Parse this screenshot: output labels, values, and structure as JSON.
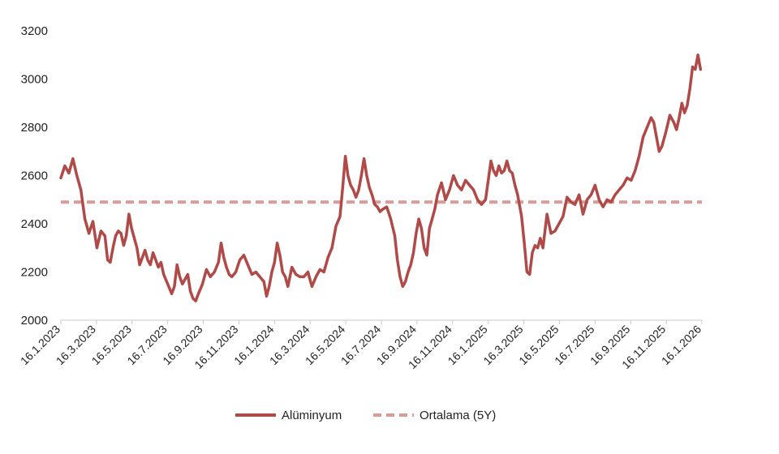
{
  "chart_data": {
    "type": "line",
    "title": "",
    "xlabel": "",
    "ylabel": "",
    "ylim": [
      2000,
      3200
    ],
    "yticks": [
      "2000",
      "2200",
      "2400",
      "2600",
      "2800",
      "3000",
      "3200"
    ],
    "xticks": [
      "16.1.2023",
      "16.3.2023",
      "16.5.2023",
      "16.7.2023",
      "16.9.2023",
      "16.11.2023",
      "16.1.2024",
      "16.3.2024",
      "16.5.2024",
      "16.7.2024",
      "16.9.2024",
      "16.11.2024",
      "16.1.2025",
      "16.3.2025",
      "16.5.2025",
      "16.7.2025",
      "16.9.2025",
      "16.11.2025",
      "16.1.2026"
    ],
    "legend_position": "bottom-center",
    "series": [
      {
        "name": "Alüminyum",
        "style": "solid",
        "color": "#b04a48",
        "points": [
          [
            0,
            2590
          ],
          [
            0.3,
            2640
          ],
          [
            0.6,
            2610
          ],
          [
            0.9,
            2670
          ],
          [
            1.2,
            2600
          ],
          [
            1.5,
            2540
          ],
          [
            1.8,
            2420
          ],
          [
            2.1,
            2360
          ],
          [
            2.4,
            2410
          ],
          [
            2.7,
            2300
          ],
          [
            3.0,
            2370
          ],
          [
            3.3,
            2350
          ],
          [
            3.5,
            2250
          ],
          [
            3.7,
            2240
          ],
          [
            3.9,
            2300
          ],
          [
            4.1,
            2350
          ],
          [
            4.3,
            2370
          ],
          [
            4.5,
            2360
          ],
          [
            4.7,
            2310
          ],
          [
            4.9,
            2350
          ],
          [
            5.1,
            2440
          ],
          [
            5.3,
            2380
          ],
          [
            5.5,
            2340
          ],
          [
            5.7,
            2300
          ],
          [
            5.9,
            2230
          ],
          [
            6.1,
            2260
          ],
          [
            6.3,
            2290
          ],
          [
            6.5,
            2250
          ],
          [
            6.7,
            2230
          ],
          [
            6.9,
            2280
          ],
          [
            7.1,
            2250
          ],
          [
            7.3,
            2220
          ],
          [
            7.5,
            2240
          ],
          [
            7.7,
            2190
          ],
          [
            8.0,
            2150
          ],
          [
            8.3,
            2110
          ],
          [
            8.5,
            2140
          ],
          [
            8.7,
            2230
          ],
          [
            8.9,
            2180
          ],
          [
            9.1,
            2150
          ],
          [
            9.3,
            2170
          ],
          [
            9.5,
            2190
          ],
          [
            9.7,
            2120
          ],
          [
            9.9,
            2090
          ],
          [
            10.1,
            2080
          ],
          [
            10.3,
            2110
          ],
          [
            10.6,
            2150
          ],
          [
            10.9,
            2210
          ],
          [
            11.2,
            2180
          ],
          [
            11.5,
            2200
          ],
          [
            11.8,
            2240
          ],
          [
            12.0,
            2320
          ],
          [
            12.2,
            2260
          ],
          [
            12.4,
            2220
          ],
          [
            12.6,
            2190
          ],
          [
            12.8,
            2180
          ],
          [
            13.1,
            2200
          ],
          [
            13.4,
            2250
          ],
          [
            13.7,
            2270
          ],
          [
            14.0,
            2230
          ],
          [
            14.3,
            2190
          ],
          [
            14.6,
            2200
          ],
          [
            14.9,
            2180
          ],
          [
            15.2,
            2160
          ],
          [
            15.4,
            2100
          ],
          [
            15.6,
            2140
          ],
          [
            15.8,
            2200
          ],
          [
            16.0,
            2240
          ],
          [
            16.2,
            2320
          ],
          [
            16.4,
            2270
          ],
          [
            16.6,
            2200
          ],
          [
            16.8,
            2180
          ],
          [
            17.0,
            2140
          ],
          [
            17.3,
            2220
          ],
          [
            17.6,
            2190
          ],
          [
            17.9,
            2180
          ],
          [
            18.2,
            2180
          ],
          [
            18.5,
            2200
          ],
          [
            18.8,
            2140
          ],
          [
            19.1,
            2180
          ],
          [
            19.4,
            2210
          ],
          [
            19.7,
            2200
          ],
          [
            20.0,
            2260
          ],
          [
            20.3,
            2300
          ],
          [
            20.6,
            2390
          ],
          [
            20.9,
            2430
          ],
          [
            21.1,
            2550
          ],
          [
            21.3,
            2680
          ],
          [
            21.5,
            2600
          ],
          [
            21.7,
            2560
          ],
          [
            21.9,
            2540
          ],
          [
            22.1,
            2510
          ],
          [
            22.3,
            2540
          ],
          [
            22.5,
            2600
          ],
          [
            22.7,
            2670
          ],
          [
            22.9,
            2600
          ],
          [
            23.1,
            2550
          ],
          [
            23.3,
            2520
          ],
          [
            23.5,
            2480
          ],
          [
            23.7,
            2470
          ],
          [
            23.9,
            2450
          ],
          [
            24.1,
            2460
          ],
          [
            24.4,
            2470
          ],
          [
            24.7,
            2420
          ],
          [
            25.0,
            2350
          ],
          [
            25.2,
            2250
          ],
          [
            25.4,
            2180
          ],
          [
            25.6,
            2140
          ],
          [
            25.8,
            2160
          ],
          [
            26.0,
            2200
          ],
          [
            26.2,
            2230
          ],
          [
            26.4,
            2280
          ],
          [
            26.6,
            2360
          ],
          [
            26.8,
            2420
          ],
          [
            27.0,
            2380
          ],
          [
            27.2,
            2300
          ],
          [
            27.4,
            2270
          ],
          [
            27.6,
            2380
          ],
          [
            27.8,
            2420
          ],
          [
            28.0,
            2460
          ],
          [
            28.2,
            2520
          ],
          [
            28.5,
            2570
          ],
          [
            28.8,
            2500
          ],
          [
            29.1,
            2540
          ],
          [
            29.4,
            2600
          ],
          [
            29.7,
            2560
          ],
          [
            30.0,
            2540
          ],
          [
            30.3,
            2580
          ],
          [
            30.6,
            2560
          ],
          [
            30.9,
            2540
          ],
          [
            31.2,
            2500
          ],
          [
            31.5,
            2480
          ],
          [
            31.8,
            2500
          ],
          [
            32.0,
            2580
          ],
          [
            32.2,
            2660
          ],
          [
            32.4,
            2620
          ],
          [
            32.6,
            2600
          ],
          [
            32.8,
            2640
          ],
          [
            33.0,
            2610
          ],
          [
            33.2,
            2620
          ],
          [
            33.4,
            2660
          ],
          [
            33.6,
            2620
          ],
          [
            33.8,
            2610
          ],
          [
            34.0,
            2560
          ],
          [
            34.2,
            2520
          ],
          [
            34.5,
            2430
          ],
          [
            34.7,
            2320
          ],
          [
            34.9,
            2200
          ],
          [
            35.1,
            2190
          ],
          [
            35.3,
            2280
          ],
          [
            35.5,
            2310
          ],
          [
            35.7,
            2300
          ],
          [
            35.9,
            2340
          ],
          [
            36.1,
            2300
          ],
          [
            36.4,
            2440
          ],
          [
            36.7,
            2360
          ],
          [
            37.0,
            2370
          ],
          [
            37.3,
            2400
          ],
          [
            37.6,
            2430
          ],
          [
            37.9,
            2510
          ],
          [
            38.2,
            2490
          ],
          [
            38.5,
            2480
          ],
          [
            38.8,
            2520
          ],
          [
            39.1,
            2440
          ],
          [
            39.4,
            2500
          ],
          [
            39.7,
            2520
          ],
          [
            40.0,
            2560
          ],
          [
            40.3,
            2500
          ],
          [
            40.6,
            2470
          ],
          [
            40.9,
            2500
          ],
          [
            41.2,
            2490
          ],
          [
            41.5,
            2520
          ],
          [
            41.8,
            2540
          ],
          [
            42.1,
            2560
          ],
          [
            42.4,
            2590
          ],
          [
            42.7,
            2580
          ],
          [
            43.0,
            2620
          ],
          [
            43.3,
            2680
          ],
          [
            43.6,
            2760
          ],
          [
            43.9,
            2800
          ],
          [
            44.2,
            2840
          ],
          [
            44.4,
            2820
          ],
          [
            44.6,
            2760
          ],
          [
            44.8,
            2700
          ],
          [
            45.0,
            2720
          ],
          [
            45.3,
            2780
          ],
          [
            45.6,
            2850
          ],
          [
            45.9,
            2820
          ],
          [
            46.1,
            2790
          ],
          [
            46.3,
            2840
          ],
          [
            46.5,
            2900
          ],
          [
            46.7,
            2860
          ],
          [
            46.9,
            2890
          ],
          [
            47.1,
            2960
          ],
          [
            47.3,
            3050
          ],
          [
            47.5,
            3040
          ],
          [
            47.7,
            3100
          ],
          [
            47.9,
            3040
          ]
        ]
      },
      {
        "name": "Ortalama (5Y)",
        "style": "dashed",
        "color": "#d99a98",
        "values": [
          2490,
          2490
        ]
      }
    ]
  }
}
